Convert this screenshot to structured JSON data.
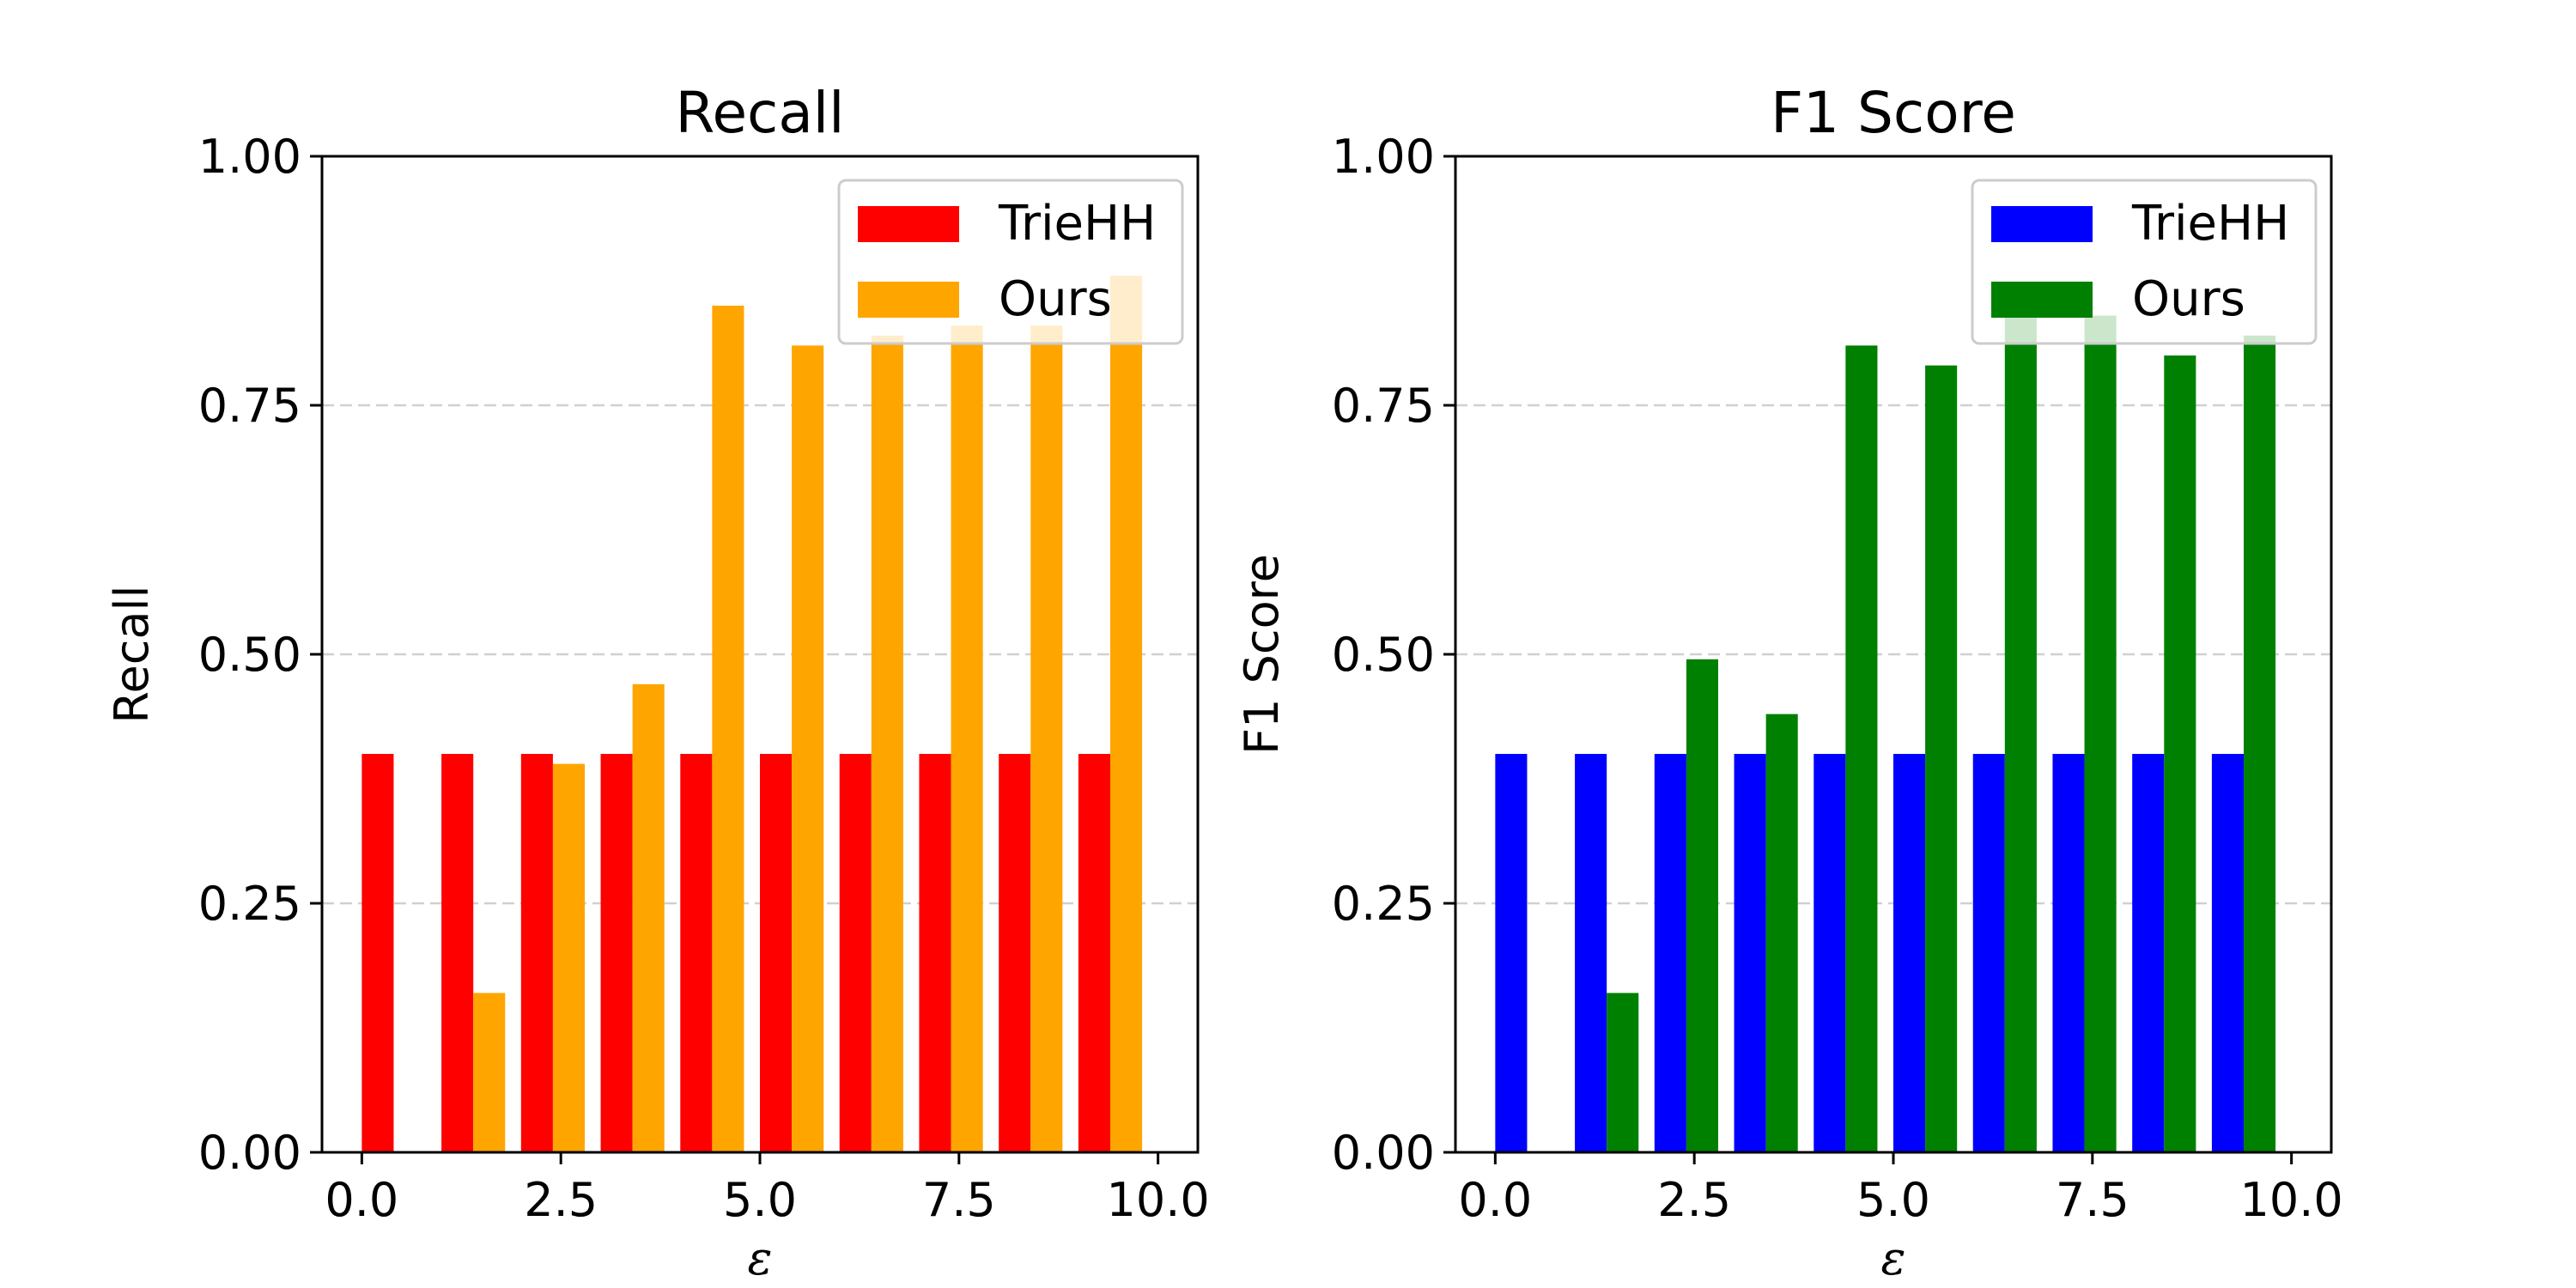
{
  "chart_data": [
    {
      "type": "bar",
      "title": "Recall",
      "xlabel": "ε",
      "ylabel": "Recall",
      "xlim": [
        -0.5,
        10.5
      ],
      "ylim": [
        0,
        1
      ],
      "xticks": [
        0.0,
        2.5,
        5.0,
        7.5,
        10.0
      ],
      "xtick_labels": [
        "0.0",
        "2.5",
        "5.0",
        "7.5",
        "10.0"
      ],
      "yticks": [
        0.0,
        0.25,
        0.5,
        0.75,
        1.0
      ],
      "ytick_labels": [
        "0.00",
        "0.25",
        "0.50",
        "0.75",
        "1.00"
      ],
      "grid": "y-dashed",
      "legend_position": "top-right",
      "bar_width": 0.4,
      "x": [
        0.4,
        1.4,
        2.4,
        3.4,
        4.4,
        5.4,
        6.4,
        7.4,
        8.4,
        9.4
      ],
      "series": [
        {
          "name": "TrieHH",
          "color": "#ff0000",
          "offset": -0.2,
          "values": [
            0.4,
            0.4,
            0.4,
            0.4,
            0.4,
            0.4,
            0.4,
            0.4,
            0.4,
            0.4
          ]
        },
        {
          "name": "Ours",
          "color": "#ffa500",
          "offset": 0.2,
          "values": [
            0.0,
            0.16,
            0.39,
            0.47,
            0.85,
            0.81,
            0.82,
            0.83,
            0.83,
            0.88
          ]
        }
      ]
    },
    {
      "type": "bar",
      "title": "F1 Score",
      "xlabel": "ε",
      "ylabel": "F1 Score",
      "xlim": [
        -0.5,
        10.5
      ],
      "ylim": [
        0,
        1
      ],
      "xticks": [
        0.0,
        2.5,
        5.0,
        7.5,
        10.0
      ],
      "xtick_labels": [
        "0.0",
        "2.5",
        "5.0",
        "7.5",
        "10.0"
      ],
      "yticks": [
        0.0,
        0.25,
        0.5,
        0.75,
        1.0
      ],
      "ytick_labels": [
        "0.00",
        "0.25",
        "0.50",
        "0.75",
        "1.00"
      ],
      "grid": "y-dashed",
      "legend_position": "top-right",
      "bar_width": 0.4,
      "x": [
        0.4,
        1.4,
        2.4,
        3.4,
        4.4,
        5.4,
        6.4,
        7.4,
        8.4,
        9.4
      ],
      "series": [
        {
          "name": "TrieHH",
          "color": "#0000ff",
          "offset": -0.2,
          "values": [
            0.4,
            0.4,
            0.4,
            0.4,
            0.4,
            0.4,
            0.4,
            0.4,
            0.4,
            0.4
          ]
        },
        {
          "name": "Ours",
          "color": "#008000",
          "offset": 0.2,
          "values": [
            0.0,
            0.16,
            0.495,
            0.44,
            0.81,
            0.79,
            0.84,
            0.84,
            0.8,
            0.82
          ]
        }
      ]
    }
  ]
}
